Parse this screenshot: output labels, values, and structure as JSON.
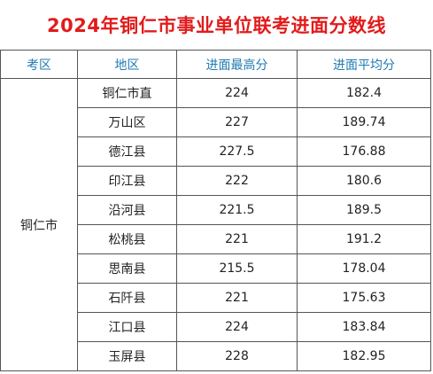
{
  "title": "2024年铜仁市事业单位联考进面分数线",
  "headers": {
    "zone": "考区",
    "area": "地区",
    "max_score": "进面最高分",
    "avg_score": "进面平均分"
  },
  "zone": "铜仁市",
  "rows": [
    {
      "area": "铜仁市直",
      "max": "224",
      "avg": "182.4"
    },
    {
      "area": "万山区",
      "max": "227",
      "avg": "189.74"
    },
    {
      "area": "德江县",
      "max": "227.5",
      "avg": "176.88"
    },
    {
      "area": "印江县",
      "max": "222",
      "avg": "180.6"
    },
    {
      "area": "沿河县",
      "max": "221.5",
      "avg": "189.5"
    },
    {
      "area": "松桃县",
      "max": "221",
      "avg": "191.2"
    },
    {
      "area": "思南县",
      "max": "215.5",
      "avg": "178.04"
    },
    {
      "area": "石阡县",
      "max": "221",
      "avg": "175.63"
    },
    {
      "area": "江口县",
      "max": "224",
      "avg": "183.84"
    },
    {
      "area": "玉屏县",
      "max": "228",
      "avg": "182.95"
    }
  ],
  "colors": {
    "title": "#e21b1b",
    "header_text": "#1f7ab3"
  }
}
